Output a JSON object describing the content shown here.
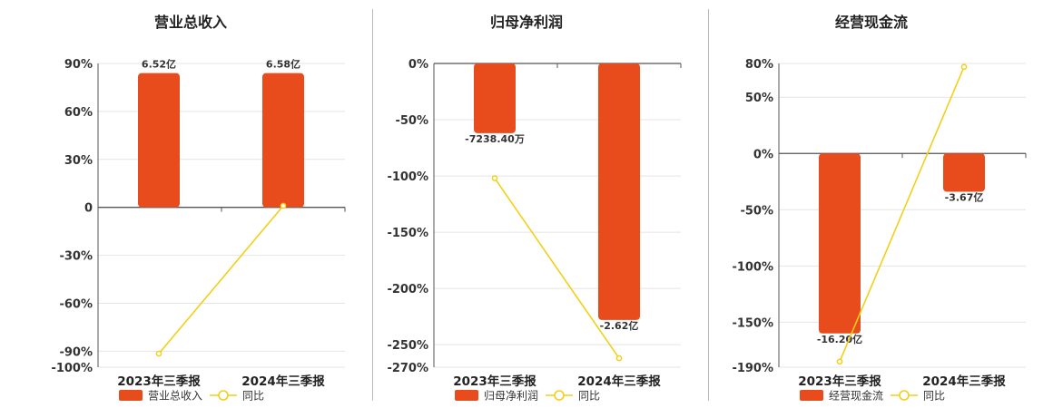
{
  "chart_data": [
    {
      "type": "bar",
      "title": "营业总收入",
      "categories": [
        "2023年三季报",
        "2024年三季报"
      ],
      "bar_labels": [
        "6.52亿",
        "6.58亿"
      ],
      "bar_values_pct": [
        84,
        84
      ],
      "series": [
        {
          "name": "营业总收入",
          "type": "bar",
          "color": "#e84c1d"
        },
        {
          "name": "同比",
          "type": "line",
          "color": "#f2cf1a",
          "values": [
            -91.5,
            0.95
          ]
        }
      ],
      "yticks": [
        90,
        60,
        30,
        0,
        -30,
        -60,
        -90
      ],
      "ytick_labels": [
        "90%",
        "60%",
        "30%",
        "0",
        "-30%",
        "-60%",
        "-90%"
      ],
      "ylim": [
        -100,
        90
      ],
      "ylim_labels": [
        "-100%",
        "90%"
      ]
    },
    {
      "type": "bar",
      "title": "归母净利润",
      "categories": [
        "2023年三季报",
        "2024年三季报"
      ],
      "bar_labels": [
        "-7238.40万",
        "-2.62亿"
      ],
      "bar_values_pct": [
        -62,
        -228
      ],
      "series": [
        {
          "name": "归母净利润",
          "type": "bar",
          "color": "#e84c1d"
        },
        {
          "name": "同比",
          "type": "line",
          "color": "#f2cf1a",
          "values": [
            -102,
            -262
          ]
        }
      ],
      "yticks": [
        0,
        -50,
        -100,
        -150,
        -200,
        -250
      ],
      "ytick_labels": [
        "0%",
        "-50%",
        "-100%",
        "-150%",
        "-200%",
        "-250%"
      ],
      "ylim": [
        -270,
        0
      ],
      "ylim_labels": [
        "-270%",
        "0%"
      ]
    },
    {
      "type": "bar",
      "title": "经营现金流",
      "categories": [
        "2023年三季报",
        "2024年三季报"
      ],
      "bar_labels": [
        "-16.20亿",
        "-3.67亿"
      ],
      "bar_values_pct": [
        -160,
        -34
      ],
      "series": [
        {
          "name": "经营现金流",
          "type": "bar",
          "color": "#e84c1d"
        },
        {
          "name": "同比",
          "type": "line",
          "color": "#f2cf1a",
          "values": [
            -185,
            77
          ]
        }
      ],
      "yticks": [
        80,
        50,
        0,
        -50,
        -100,
        -150
      ],
      "ytick_labels": [
        "80%",
        "50%",
        "0%",
        "-50%",
        "-100%",
        "-150%"
      ],
      "ylim": [
        -190,
        80
      ],
      "ylim_labels": [
        "-190%",
        "80%"
      ]
    }
  ]
}
